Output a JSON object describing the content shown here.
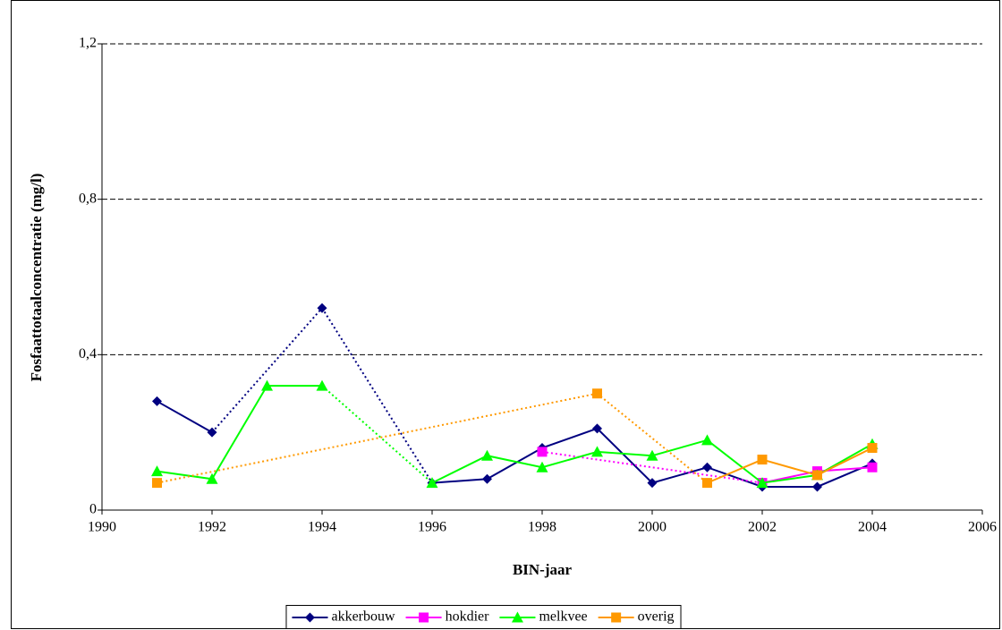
{
  "chart_data": {
    "type": "line",
    "x_label": "BIN-jaar",
    "y_label": "Fosfaattotaalconcentratie (mg/l)",
    "x": [
      1991,
      1992,
      1993,
      1994,
      1995,
      1996,
      1997,
      1998,
      1999,
      2000,
      2001,
      2002,
      2003,
      2004
    ],
    "series": [
      {
        "name": "akkerbouw",
        "color": "#000080",
        "marker": "diamond",
        "values": [
          0.28,
          0.2,
          null,
          0.52,
          null,
          0.07,
          0.08,
          0.16,
          0.21,
          0.07,
          0.11,
          0.06,
          0.06,
          0.12
        ]
      },
      {
        "name": "hokdier",
        "color": "#ff00ff",
        "marker": "square",
        "values": [
          null,
          null,
          null,
          null,
          null,
          null,
          null,
          0.15,
          null,
          null,
          null,
          0.07,
          0.1,
          0.11
        ]
      },
      {
        "name": "melkvee",
        "color": "#00ff00",
        "marker": "triangle",
        "values": [
          0.1,
          0.08,
          0.32,
          0.32,
          null,
          0.07,
          0.14,
          0.11,
          0.15,
          0.14,
          0.18,
          0.07,
          0.09,
          0.17
        ]
      },
      {
        "name": "overig",
        "color": "#ff9900",
        "marker": "square",
        "values": [
          0.07,
          null,
          null,
          null,
          null,
          null,
          null,
          null,
          0.3,
          null,
          0.07,
          0.13,
          0.09,
          0.16
        ]
      }
    ],
    "xlim": [
      1990,
      2006
    ],
    "xticks": [
      1990,
      1992,
      1994,
      1996,
      1998,
      2000,
      2002,
      2004,
      2006
    ],
    "ylim": [
      0,
      1.2
    ],
    "yticks": [
      0,
      {
        "value": 0.4,
        "label": "0,4"
      },
      {
        "value": 0.8,
        "label": "0,8"
      },
      {
        "value": 1.2,
        "label": "1,2"
      }
    ],
    "grid": true,
    "legend": "bottom"
  }
}
